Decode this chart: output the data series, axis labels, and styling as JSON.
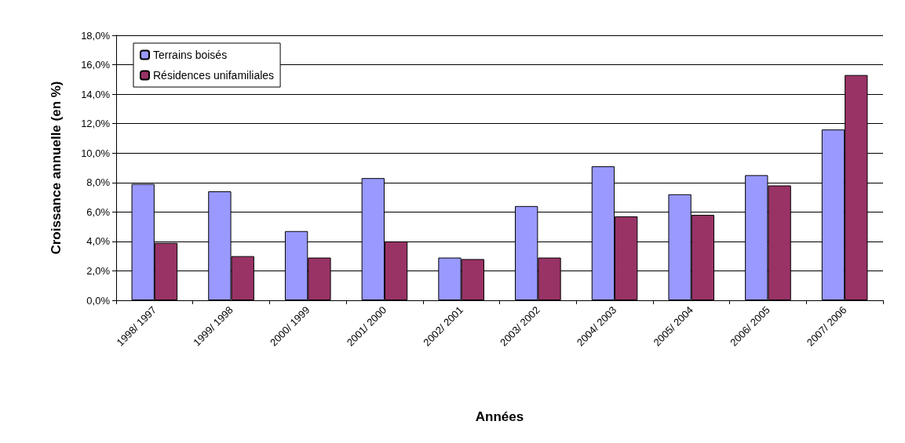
{
  "chart_data": {
    "type": "bar",
    "xlabel": "Années",
    "ylabel": "Croissance annuelle (en %)",
    "categories": [
      "1998/ 1997",
      "1999/ 1998",
      "2000/ 1999",
      "2001/ 2000",
      "2002/ 2001",
      "2003/ 2002",
      "2004/ 2003",
      "2005/ 2004",
      "2006/ 2005",
      "2007/ 2006"
    ],
    "series": [
      {
        "name": "Terrains boisés",
        "color": "#9999ff",
        "values": [
          7.9,
          7.4,
          4.7,
          8.3,
          2.9,
          6.4,
          9.1,
          7.2,
          8.5,
          11.6
        ]
      },
      {
        "name": "Résidences unifamiliales",
        "color": "#993366",
        "values": [
          3.9,
          3.0,
          2.9,
          4.0,
          2.8,
          2.9,
          5.7,
          5.8,
          7.8,
          15.3
        ]
      }
    ],
    "ylim": [
      0,
      18
    ],
    "yticks": [
      {
        "value": 0,
        "label": "0,0%"
      },
      {
        "value": 2,
        "label": "2,0%"
      },
      {
        "value": 4,
        "label": "4,0%"
      },
      {
        "value": 6,
        "label": "6,0%"
      },
      {
        "value": 8,
        "label": "8,0%"
      },
      {
        "value": 10,
        "label": "10,0%"
      },
      {
        "value": 12,
        "label": "12,0%"
      },
      {
        "value": 14,
        "label": "14,0%"
      },
      {
        "value": 16,
        "label": "16,0%"
      },
      {
        "value": 18,
        "label": "18,0%"
      }
    ],
    "grid": "y",
    "legend": "top left"
  }
}
